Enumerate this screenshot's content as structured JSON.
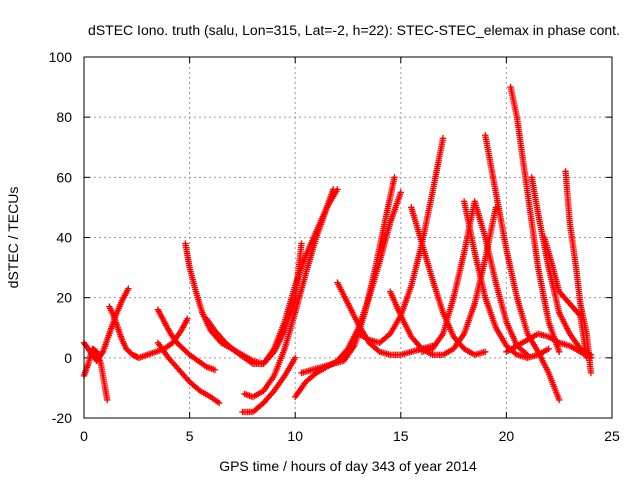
{
  "chart_data": {
    "type": "scatter",
    "title": "dSTEC Iono. truth (salu, Lon=315, Lat=-2, h=22): STEC-STEC_elemax in phase cont.",
    "xlabel": "GPS time / hours of day 343 of year 2014",
    "ylabel": "dSTEC  / TECUs",
    "xlim": [
      0,
      25
    ],
    "ylim": [
      -20,
      100
    ],
    "xticks": [
      0,
      5,
      10,
      15,
      20,
      25
    ],
    "yticks": [
      -20,
      0,
      20,
      40,
      60,
      80,
      100
    ],
    "xtick_labels": [
      "0",
      "5",
      "10",
      "15",
      "20",
      "25"
    ],
    "ytick_labels": [
      "-20",
      "0",
      "20",
      "40",
      "60",
      "80",
      "100"
    ],
    "grid": true,
    "legend": "none",
    "marker": "plus",
    "color": "#ff0000",
    "series": [
      {
        "x": [
          0.0,
          0.3,
          0.6,
          0.9,
          1.2,
          1.5,
          1.8,
          2.1
        ],
        "y": [
          5,
          2,
          -1,
          2,
          8,
          14,
          19,
          23
        ]
      },
      {
        "x": [
          0.0,
          0.2,
          0.4,
          0.6,
          0.8,
          1.0,
          1.1
        ],
        "y": [
          -6,
          -2,
          3,
          2,
          -2,
          -10,
          -14
        ]
      },
      {
        "x": [
          1.2,
          1.4,
          1.6,
          1.8,
          2.0,
          2.3,
          2.6,
          3.0,
          3.4,
          3.8,
          4.2,
          4.6,
          4.9
        ],
        "y": [
          17,
          14,
          10,
          6,
          3,
          1,
          0,
          1,
          2,
          3,
          5,
          9,
          13
        ]
      },
      {
        "x": [
          3.5,
          3.8,
          4.1,
          4.4,
          4.7,
          5.0,
          5.4,
          5.8,
          6.2
        ],
        "y": [
          16,
          12,
          8,
          5,
          3,
          1,
          -1,
          -3,
          -4
        ]
      },
      {
        "x": [
          3.5,
          4.0,
          4.5,
          5.0,
          5.5,
          6.0,
          6.4
        ],
        "y": [
          5,
          0,
          -4,
          -8,
          -11,
          -13,
          -15
        ]
      },
      {
        "x": [
          4.8,
          5.0,
          5.3,
          5.6,
          6.0,
          6.5,
          7.0,
          7.5,
          8.0,
          8.5,
          9.0,
          9.5,
          10.0,
          10.3
        ],
        "y": [
          38,
          30,
          22,
          15,
          9,
          5,
          3,
          1,
          -1,
          -2,
          2,
          9,
          20,
          38
        ]
      },
      {
        "x": [
          5.8,
          6.2,
          6.7,
          7.2,
          7.6,
          8.0,
          8.5,
          9.0,
          9.5,
          10.0,
          10.5,
          11.0,
          11.5,
          11.8
        ],
        "y": [
          13,
          9,
          5,
          2,
          0,
          -2,
          -2,
          3,
          12,
          24,
          34,
          42,
          50,
          56
        ]
      },
      {
        "x": [
          7.6,
          8.0,
          8.5,
          9.0,
          9.5,
          10.0,
          10.5,
          11.0,
          11.5,
          12.0
        ],
        "y": [
          -12,
          -13,
          -11,
          -6,
          3,
          15,
          28,
          40,
          50,
          56
        ]
      },
      {
        "x": [
          7.5,
          8.0,
          8.5,
          9.0,
          9.5,
          10.0
        ],
        "y": [
          -18,
          -18,
          -15,
          -11,
          -6,
          0
        ]
      },
      {
        "x": [
          10.0,
          10.5,
          11.0,
          11.5,
          12.0,
          12.5,
          13.0,
          13.5,
          14.0,
          14.5,
          15.0
        ],
        "y": [
          -13,
          -8,
          -5,
          -3,
          -1,
          3,
          10,
          20,
          32,
          45,
          55
        ]
      },
      {
        "x": [
          10.3,
          10.8,
          11.3,
          11.8,
          12.3,
          12.8,
          13.3,
          13.8,
          14.3,
          14.7
        ],
        "y": [
          -5,
          -4,
          -3,
          -2,
          -1,
          4,
          15,
          30,
          47,
          60
        ]
      },
      {
        "x": [
          12.0,
          12.5,
          13.0,
          13.5,
          14.0,
          14.5,
          15.0,
          15.5,
          16.0,
          16.5
        ],
        "y": [
          25,
          18,
          11,
          5,
          2,
          1,
          1,
          2,
          3,
          4
        ]
      },
      {
        "x": [
          13.0,
          13.5,
          14.0,
          14.5,
          15.0,
          15.5,
          16.0,
          16.5,
          17.0
        ],
        "y": [
          8,
          6,
          5,
          8,
          14,
          24,
          38,
          55,
          73
        ]
      },
      {
        "x": [
          14.5,
          15.0,
          15.5,
          16.0,
          16.5,
          17.0,
          17.5,
          18.0,
          18.5,
          19.0,
          19.5
        ],
        "y": [
          22,
          14,
          7,
          3,
          1,
          1,
          3,
          8,
          18,
          33,
          50
        ]
      },
      {
        "x": [
          15.5,
          16.0,
          16.5,
          17.0,
          17.5,
          18.0,
          18.5,
          19.0
        ],
        "y": [
          50,
          38,
          26,
          15,
          7,
          3,
          1,
          2
        ]
      },
      {
        "x": [
          16.0,
          16.5,
          17.0,
          17.5,
          18.0,
          18.5,
          19.0,
          19.5,
          20.0,
          20.5,
          21.0
        ],
        "y": [
          2,
          3,
          8,
          20,
          35,
          52,
          40,
          25,
          12,
          4,
          1
        ]
      },
      {
        "x": [
          18.0,
          18.5,
          19.0,
          19.5,
          20.0,
          20.5,
          21.0,
          21.5,
          22.0
        ],
        "y": [
          52,
          35,
          20,
          10,
          4,
          1,
          0,
          1,
          3
        ]
      },
      {
        "x": [
          19.0,
          19.5,
          20.0,
          20.5,
          21.0,
          21.5,
          22.0,
          22.5
        ],
        "y": [
          74,
          55,
          36,
          20,
          8,
          2,
          -5,
          -14
        ]
      },
      {
        "x": [
          20.2,
          20.5,
          21.0,
          21.5,
          22.0,
          22.5
        ],
        "y": [
          90,
          80,
          55,
          30,
          12,
          2
        ]
      },
      {
        "x": [
          21.2,
          21.5,
          22.0,
          22.5,
          23.0,
          23.5,
          24.0
        ],
        "y": [
          60,
          48,
          30,
          15,
          8,
          3,
          1
        ]
      },
      {
        "x": [
          21.8,
          22.2,
          22.5,
          23.0,
          23.5,
          23.8
        ],
        "y": [
          40,
          30,
          22,
          18,
          14,
          0
        ]
      },
      {
        "x": [
          22.8,
          23.0,
          23.3,
          23.5,
          23.8,
          24.0
        ],
        "y": [
          62,
          45,
          30,
          18,
          8,
          -5
        ]
      },
      {
        "x": [
          20.0,
          20.5,
          21.0,
          21.5,
          22.0,
          22.5,
          23.0,
          23.5,
          24.0
        ],
        "y": [
          2,
          4,
          6,
          8,
          7,
          5,
          4,
          2,
          0
        ]
      }
    ]
  }
}
